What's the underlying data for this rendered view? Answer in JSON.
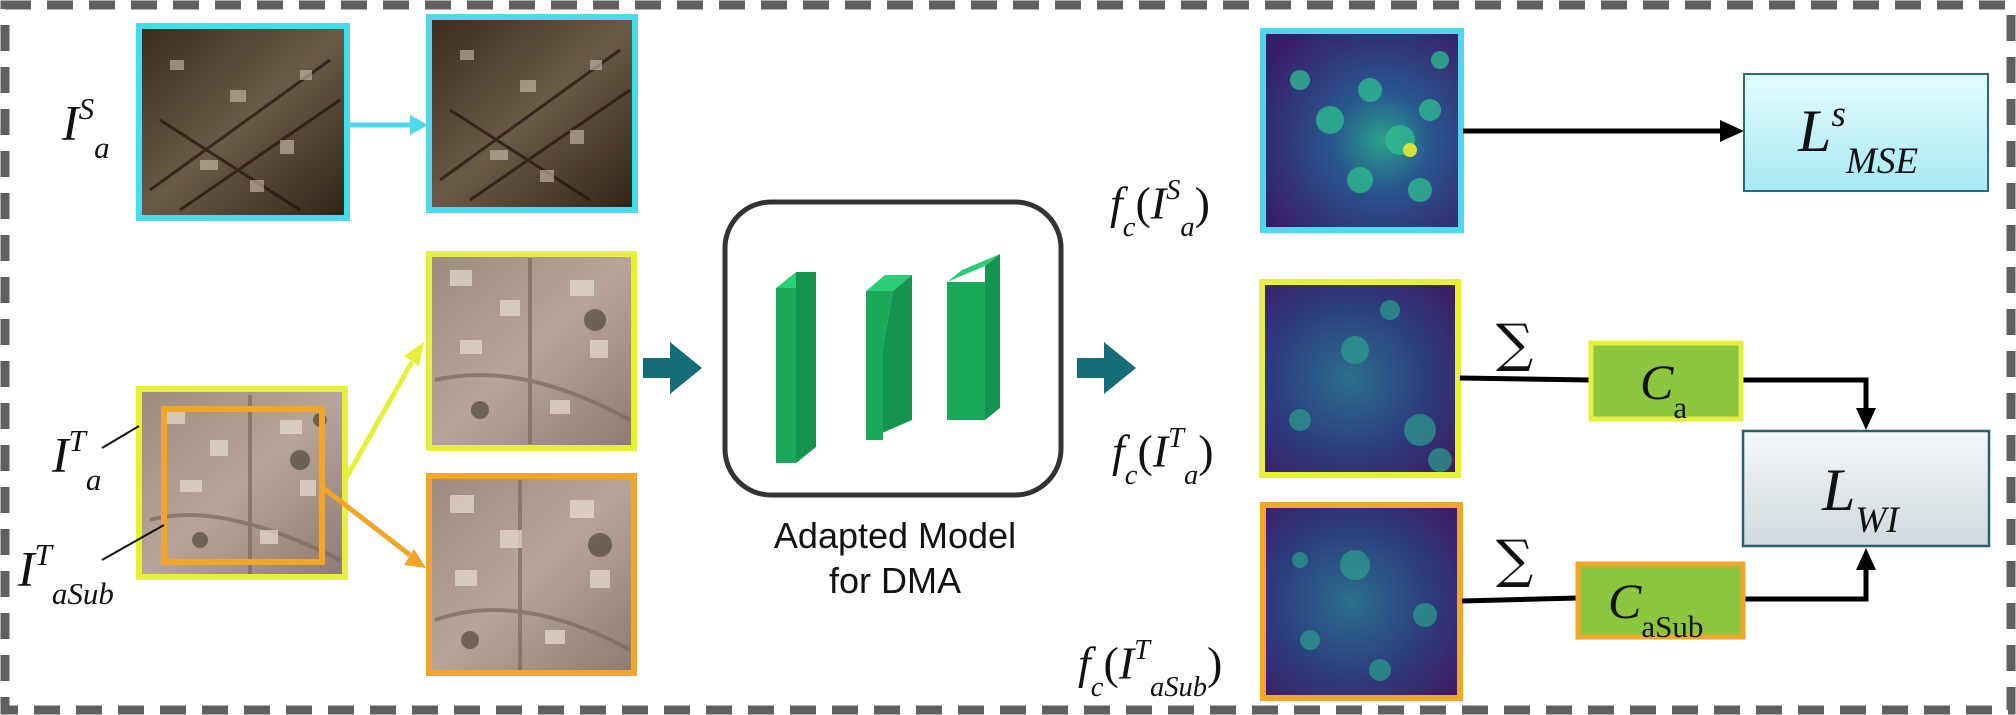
{
  "labels": {
    "is_a": {
      "base": "I",
      "sup": "S",
      "sub": "a"
    },
    "it_a": {
      "base": "I",
      "sup": "T",
      "sub": "a"
    },
    "it_asub": {
      "base": "I",
      "sup": "T",
      "sub": "aSub"
    },
    "fc_is_a": {
      "fn": "f",
      "fsub": "c",
      "base": "I",
      "sup": "S",
      "sub": "a"
    },
    "fc_it_a": {
      "fn": "f",
      "fsub": "c",
      "base": "I",
      "sup": "T",
      "sub": "a"
    },
    "fc_it_asub": {
      "fn": "f",
      "fsub": "c",
      "base": "I",
      "sup": "T",
      "sub": "aSub"
    }
  },
  "model": {
    "caption_line1": "Adapted Model",
    "caption_line2": "for DMA"
  },
  "boxes": {
    "lmse": {
      "base": "L",
      "sup": "s",
      "sub": "MSE"
    },
    "ca": {
      "base": "C",
      "sub": "a"
    },
    "casub": {
      "base": "C",
      "sub": "aSub"
    },
    "lwi": {
      "base": "L",
      "sub": "WI"
    }
  },
  "sigma": "∑",
  "colors": {
    "cyan": "#4dd9ec",
    "yellow": "#e6ef3a",
    "orange": "#f2a629",
    "teal_arrow": "#156d78",
    "green_layers": "#1aa85a",
    "box_green": "#8cc63f",
    "box_cyan": "#c6f1f7",
    "box_gray": "#dfe6ea",
    "dash": "#606060"
  }
}
